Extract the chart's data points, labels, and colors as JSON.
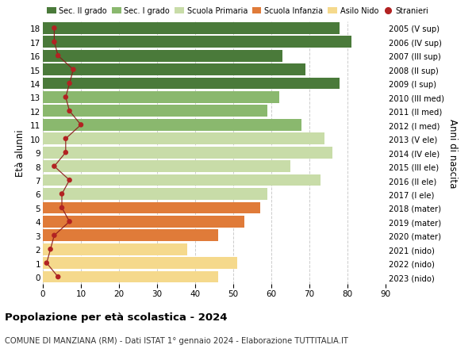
{
  "ages": [
    0,
    1,
    2,
    3,
    4,
    5,
    6,
    7,
    8,
    9,
    10,
    11,
    12,
    13,
    14,
    15,
    16,
    17,
    18
  ],
  "labels_right": [
    "2023 (nido)",
    "2022 (nido)",
    "2021 (nido)",
    "2020 (mater)",
    "2019 (mater)",
    "2018 (mater)",
    "2017 (I ele)",
    "2016 (II ele)",
    "2015 (III ele)",
    "2014 (IV ele)",
    "2013 (V ele)",
    "2012 (I med)",
    "2011 (II med)",
    "2010 (III med)",
    "2009 (I sup)",
    "2008 (II sup)",
    "2007 (III sup)",
    "2006 (IV sup)",
    "2005 (V sup)"
  ],
  "bar_values": [
    46,
    51,
    38,
    46,
    53,
    57,
    59,
    73,
    65,
    76,
    74,
    68,
    59,
    62,
    78,
    69,
    63,
    81,
    78
  ],
  "bar_colors": [
    "#f5d98c",
    "#f5d98c",
    "#f5d98c",
    "#e07b39",
    "#e07b39",
    "#e07b39",
    "#c8dca8",
    "#c8dca8",
    "#c8dca8",
    "#c8dca8",
    "#c8dca8",
    "#8ab86e",
    "#8ab86e",
    "#8ab86e",
    "#4a7a3a",
    "#4a7a3a",
    "#4a7a3a",
    "#4a7a3a",
    "#4a7a3a"
  ],
  "stranieri_values": [
    4,
    1,
    2,
    3,
    7,
    5,
    5,
    7,
    3,
    6,
    6,
    10,
    7,
    6,
    7,
    8,
    4,
    3,
    3
  ],
  "legend_labels": [
    "Sec. II grado",
    "Sec. I grado",
    "Scuola Primaria",
    "Scuola Infanzia",
    "Asilo Nido",
    "Stranieri"
  ],
  "legend_colors": [
    "#4a7a3a",
    "#8ab86e",
    "#c8dca8",
    "#e07b39",
    "#f5d98c",
    "#b22222"
  ],
  "title_bold": "Popolazione per età scolastica - 2024",
  "title_sub": "COMUNE DI MANZIANA (RM) - Dati ISTAT 1° gennaio 2024 - Elaborazione TUTTITALIA.IT",
  "ylabel_left": "Età alunni",
  "ylabel_right": "Anni di nascita",
  "xlim": [
    0,
    90
  ],
  "xticks": [
    0,
    10,
    20,
    30,
    40,
    50,
    60,
    70,
    80,
    90
  ],
  "background_color": "#ffffff",
  "grid_color": "#cccccc"
}
